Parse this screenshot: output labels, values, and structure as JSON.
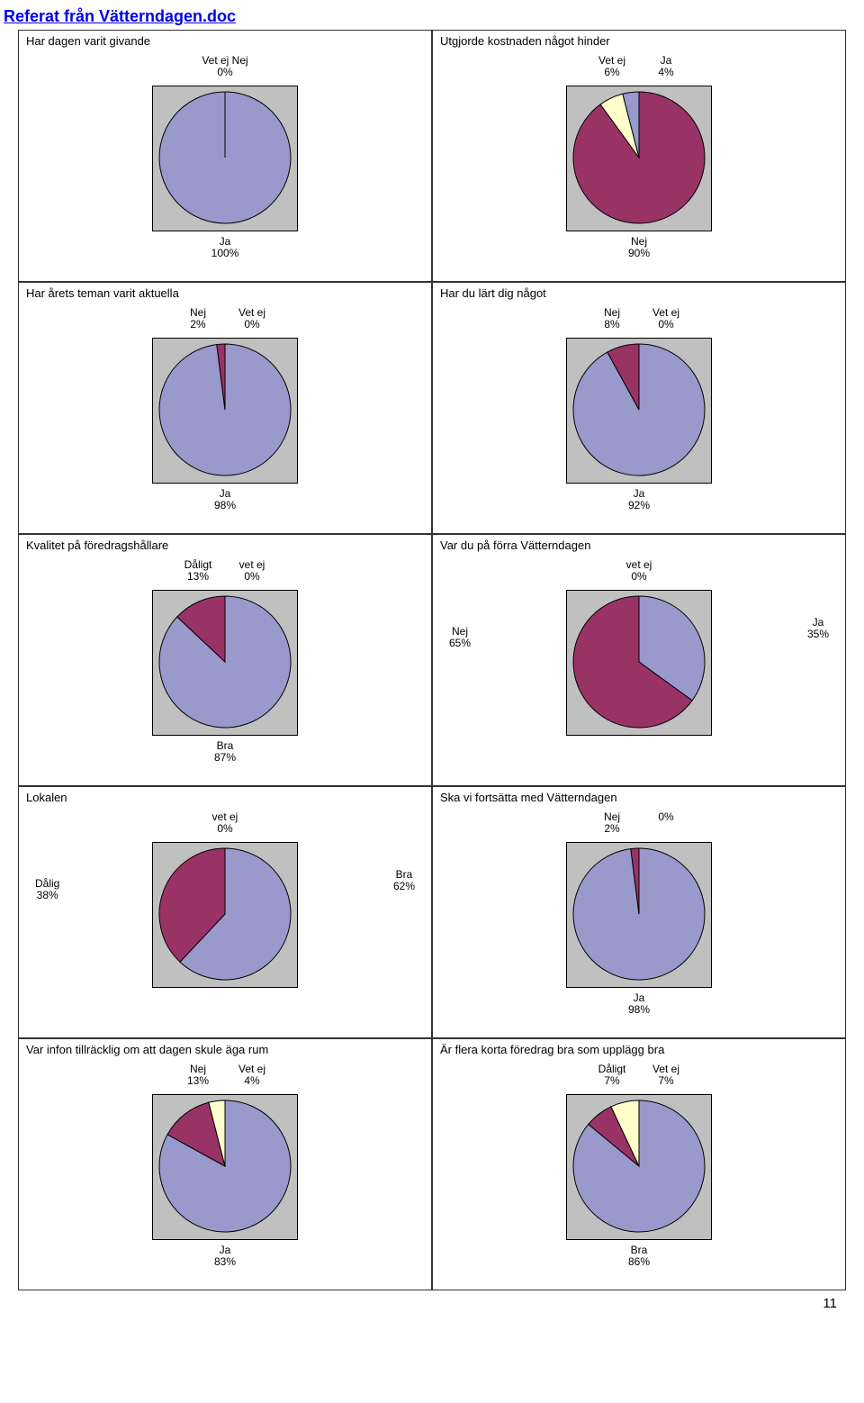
{
  "page_title": "Referat från Vätterndagen.doc",
  "page_number": "11",
  "colors": {
    "slice1": "#9999cc",
    "slice2": "#993366",
    "slice3": "#ffffcc",
    "border": "#000000",
    "plot_bg": "#c0c0c0"
  },
  "charts": [
    {
      "title": "Har dagen varit givande",
      "slices": [
        {
          "label": "Ja",
          "value": 100,
          "pct": "100%",
          "color": "#9999cc"
        },
        {
          "label": "Nej",
          "value": 0,
          "pct": "0%",
          "color": "#993366"
        },
        {
          "label": "Vet ej",
          "value": 0,
          "pct": "0%",
          "color": "#ffffcc"
        }
      ],
      "top_labels": [
        {
          "text": "Vet ej Nej",
          "sub": "0%"
        }
      ],
      "bottom_labels": [
        {
          "text": "Ja",
          "sub": "100%"
        }
      ]
    },
    {
      "title": "Utgjorde kostnaden något hinder",
      "slices": [
        {
          "label": "Nej",
          "value": 90,
          "pct": "90%",
          "color": "#993366"
        },
        {
          "label": "Vet ej",
          "value": 6,
          "pct": "6%",
          "color": "#ffffcc"
        },
        {
          "label": "Ja",
          "value": 4,
          "pct": "4%",
          "color": "#9999cc"
        }
      ],
      "top_labels": [
        {
          "text": "Vet ej",
          "sub": "6%"
        },
        {
          "text": "Ja",
          "sub": "4%"
        }
      ],
      "bottom_labels": [
        {
          "text": "Nej",
          "sub": "90%"
        }
      ]
    },
    {
      "title": "Har årets teman varit aktuella",
      "slices": [
        {
          "label": "Ja",
          "value": 98,
          "pct": "98%",
          "color": "#9999cc"
        },
        {
          "label": "Nej",
          "value": 2,
          "pct": "2%",
          "color": "#993366"
        },
        {
          "label": "Vet ej",
          "value": 0,
          "pct": "0%",
          "color": "#ffffcc"
        }
      ],
      "top_labels": [
        {
          "text": "Nej",
          "sub": "2%"
        },
        {
          "text": "Vet ej",
          "sub": "0%"
        }
      ],
      "bottom_labels": [
        {
          "text": "Ja",
          "sub": "98%"
        }
      ]
    },
    {
      "title": "Har du lärt dig något",
      "slices": [
        {
          "label": "Ja",
          "value": 92,
          "pct": "92%",
          "color": "#9999cc"
        },
        {
          "label": "Nej",
          "value": 8,
          "pct": "8%",
          "color": "#993366"
        },
        {
          "label": "Vet ej",
          "value": 0,
          "pct": "0%",
          "color": "#ffffcc"
        }
      ],
      "top_labels": [
        {
          "text": "Nej",
          "sub": "8%"
        },
        {
          "text": "Vet ej",
          "sub": "0%"
        }
      ],
      "bottom_labels": [
        {
          "text": "Ja",
          "sub": "92%"
        }
      ]
    },
    {
      "title": "Kvalitet på föredragshållare",
      "slices": [
        {
          "label": "Bra",
          "value": 87,
          "pct": "87%",
          "color": "#9999cc"
        },
        {
          "label": "Dåligt",
          "value": 13,
          "pct": "13%",
          "color": "#993366"
        },
        {
          "label": "vet ej",
          "value": 0,
          "pct": "0%",
          "color": "#ffffcc"
        }
      ],
      "top_labels": [
        {
          "text": "Dåligt",
          "sub": "13%"
        },
        {
          "text": "vet ej",
          "sub": "0%"
        }
      ],
      "bottom_labels": [
        {
          "text": "Bra",
          "sub": "87%"
        }
      ]
    },
    {
      "title": "Var du på förra Vätterndagen",
      "slices": [
        {
          "label": "Ja",
          "value": 35,
          "pct": "35%",
          "color": "#9999cc"
        },
        {
          "label": "Nej",
          "value": 65,
          "pct": "65%",
          "color": "#993366"
        },
        {
          "label": "vet ej",
          "value": 0,
          "pct": "0%",
          "color": "#ffffcc"
        }
      ],
      "top_labels": [
        {
          "text": "vet ej",
          "sub": "0%"
        }
      ],
      "right_labels": [
        {
          "text": "Ja",
          "sub": "35%"
        }
      ],
      "left_labels": [
        {
          "text": "Nej",
          "sub": "65%"
        }
      ]
    },
    {
      "title": "Lokalen",
      "slices": [
        {
          "label": "Bra",
          "value": 62,
          "pct": "62%",
          "color": "#9999cc"
        },
        {
          "label": "Dålig",
          "value": 38,
          "pct": "38%",
          "color": "#993366"
        },
        {
          "label": "vet ej",
          "value": 0,
          "pct": "0%",
          "color": "#ffffcc"
        }
      ],
      "top_labels": [
        {
          "text": "vet ej",
          "sub": "0%"
        }
      ],
      "left_labels": [
        {
          "text": "Dålig",
          "sub": "38%"
        }
      ],
      "right_labels": [
        {
          "text": "Bra",
          "sub": "62%"
        }
      ]
    },
    {
      "title": "Ska vi fortsätta med Vätterndagen",
      "slices": [
        {
          "label": "Ja",
          "value": 98,
          "pct": "98%",
          "color": "#9999cc"
        },
        {
          "label": "Nej",
          "value": 2,
          "pct": "2%",
          "color": "#993366"
        },
        {
          "label": "",
          "value": 0,
          "pct": "0%",
          "color": "#ffffcc"
        }
      ],
      "top_labels": [
        {
          "text": "Nej",
          "sub": "2%"
        },
        {
          "text": "",
          "sub": "0%"
        }
      ],
      "bottom_labels": [
        {
          "text": "Ja",
          "sub": "98%"
        }
      ]
    },
    {
      "title": "Var infon tillräcklig om att dagen skule äga rum",
      "slices": [
        {
          "label": "Ja",
          "value": 83,
          "pct": "83%",
          "color": "#9999cc"
        },
        {
          "label": "Nej",
          "value": 13,
          "pct": "13%",
          "color": "#993366"
        },
        {
          "label": "Vet ej",
          "value": 4,
          "pct": "4%",
          "color": "#ffffcc"
        }
      ],
      "top_labels": [
        {
          "text": "Nej",
          "sub": "13%"
        },
        {
          "text": "Vet ej",
          "sub": "4%"
        }
      ],
      "bottom_labels": [
        {
          "text": "Ja",
          "sub": "83%"
        }
      ]
    },
    {
      "title": "Är flera korta föredrag bra som upplägg bra",
      "slices": [
        {
          "label": "Bra",
          "value": 86,
          "pct": "86%",
          "color": "#9999cc"
        },
        {
          "label": "Dåligt",
          "value": 7,
          "pct": "7%",
          "color": "#993366"
        },
        {
          "label": "Vet ej",
          "value": 7,
          "pct": "7%",
          "color": "#ffffcc"
        }
      ],
      "top_labels": [
        {
          "text": "Dåligt",
          "sub": "7%"
        },
        {
          "text": "Vet ej",
          "sub": "7%"
        }
      ],
      "bottom_labels": [
        {
          "text": "Bra",
          "sub": "86%"
        }
      ]
    }
  ]
}
